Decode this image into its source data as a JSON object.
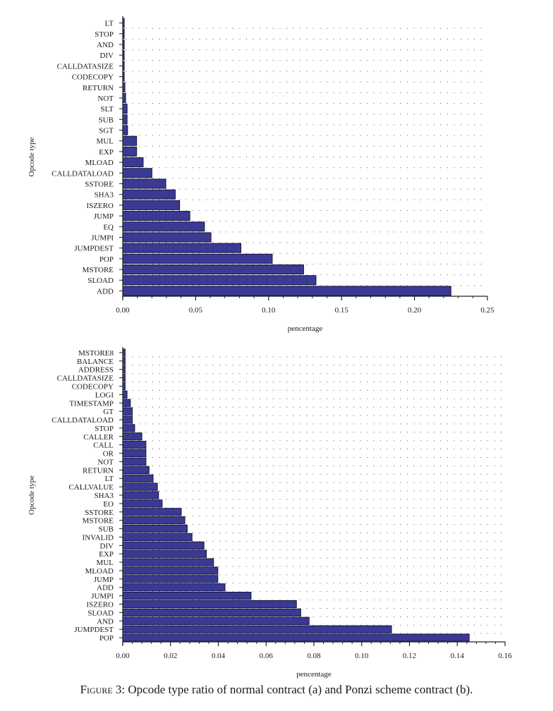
{
  "chart_data": [
    {
      "type": "bar",
      "orientation": "horizontal",
      "panel": "a",
      "title": "",
      "xlabel": "pencentage",
      "ylabel": "Opcode type",
      "xlim": [
        0,
        0.25
      ],
      "xticks": [
        0.0,
        0.05,
        0.1,
        0.15,
        0.2,
        0.25
      ],
      "xtick_labels": [
        "0.00",
        "0.05",
        "0.10",
        "0.15",
        "0.20",
        "0.25"
      ],
      "grid": "dotted horizontal",
      "legend": "none",
      "bar_color": "#3a3a94",
      "categories": [
        "LT",
        "STOP",
        "AND",
        "DIV",
        "CALLDATASIZE",
        "CODECOPY",
        "RETURN",
        "NOT",
        "SLT",
        "SUB",
        "SGT",
        "MUL",
        "EXP",
        "MLOAD",
        "CALLDATALOAD",
        "SSTORE",
        "SHA3",
        "ISZERO",
        "JUMP",
        "EQ",
        "JUMPI",
        "JUMPDEST",
        "POP",
        "MSTORE",
        "SLOAD",
        "ADD"
      ],
      "values": [
        0.001,
        0.001,
        0.001,
        0.001,
        0.001,
        0.001,
        0.0015,
        0.002,
        0.003,
        0.003,
        0.0033,
        0.0095,
        0.0095,
        0.014,
        0.02,
        0.0295,
        0.036,
        0.039,
        0.046,
        0.056,
        0.0605,
        0.081,
        0.1025,
        0.124,
        0.1325,
        0.225
      ]
    },
    {
      "type": "bar",
      "orientation": "horizontal",
      "panel": "b",
      "title": "",
      "xlabel": "pencentage",
      "ylabel": "Opcode type",
      "xlim": [
        0,
        0.16
      ],
      "xticks": [
        0.0,
        0.02,
        0.04,
        0.06,
        0.08,
        0.1,
        0.12,
        0.14,
        0.16
      ],
      "xtick_labels": [
        "0.00",
        "0.02",
        "0.04",
        "0.06",
        "0.08",
        "0.10",
        "0.12",
        "0.14",
        "0.16"
      ],
      "grid": "dotted horizontal",
      "legend": "none",
      "bar_color": "#3a3a94",
      "categories": [
        "MSTORE8",
        "BALANCE",
        "ADDRESS",
        "CALLDATASIZE",
        "CODECOPY",
        "LOGI",
        "TIMESTAMP",
        "GT",
        "CALLDATALOAD",
        "STOP",
        "CALLER",
        "CALL",
        "OR",
        "NOT",
        "RETURN",
        "LT",
        "CALLVALUE",
        "SHA3",
        "EO",
        "SSTORE",
        "MSTORE",
        "SUB",
        "INVALID",
        "DIV",
        "EXP",
        "MUL",
        "MLOAD",
        "JUMP",
        "ADD",
        "JUMPI",
        "ISZERO",
        "SLOAD",
        "AND",
        "JUMPDEST",
        "POP"
      ],
      "values": [
        0.001,
        0.001,
        0.001,
        0.001,
        0.001,
        0.0018,
        0.0032,
        0.004,
        0.004,
        0.005,
        0.008,
        0.0097,
        0.0097,
        0.0097,
        0.011,
        0.0127,
        0.0145,
        0.015,
        0.0165,
        0.0245,
        0.026,
        0.027,
        0.029,
        0.034,
        0.035,
        0.038,
        0.0398,
        0.0398,
        0.0428,
        0.0537,
        0.0727,
        0.0745,
        0.078,
        0.1125,
        0.145
      ]
    }
  ],
  "caption": {
    "label": "Figure 3:",
    "text": " Opcode type ratio of normal contract (a) and Ponzi scheme contract (b)."
  }
}
